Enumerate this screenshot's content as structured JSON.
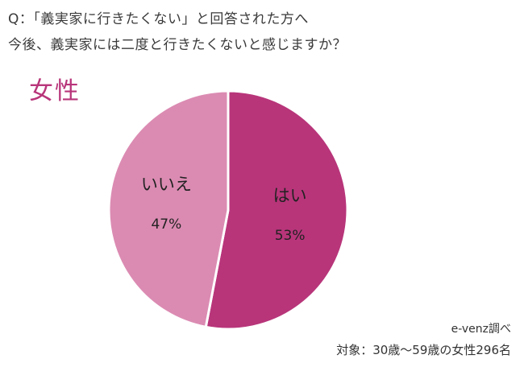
{
  "question": {
    "line1": "Q：「義実家に行きたくない」と回答された方へ",
    "line2": "今後、義実家には二度と行きたくないと感じますか？"
  },
  "gender_label": "女性",
  "footer": {
    "source": "e-venz調べ",
    "subject": "対象：30歳〜59歳の女性296名"
  },
  "colors": {
    "yes": "#b8357a",
    "no": "#db8bb2",
    "gender_text": "#b8357a"
  },
  "chart_data": {
    "type": "pie",
    "slices": [
      {
        "label": "はい",
        "value": 53,
        "display": "53%",
        "color": "#b8357a"
      },
      {
        "label": "いいえ",
        "value": 47,
        "display": "47%",
        "color": "#db8bb2"
      }
    ],
    "start_angle_deg": 0,
    "direction": "clockwise",
    "legend": "none"
  }
}
